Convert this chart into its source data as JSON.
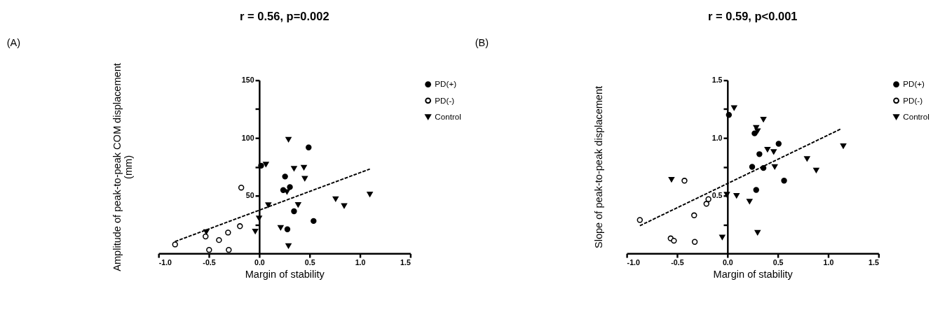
{
  "chart_data": [
    {
      "type": "scatter",
      "title": "r = 0.56, p=0.002",
      "annotations": [
        "(A)"
      ],
      "xlabel": "Margin of stability",
      "ylabel": "Amplitude of peak-to-peak COM displacement\n(mm)",
      "xlim": [
        -1.0,
        1.5
      ],
      "xticks": [
        {
          "value": -1.0,
          "label": "-1.0"
        },
        {
          "value": -0.5,
          "label": "-0.5"
        },
        {
          "value": 0,
          "label": "0.0"
        },
        {
          "value": 0.5,
          "label": "0.5"
        },
        {
          "value": 1.0,
          "label": "1.0"
        },
        {
          "value": 1.5,
          "label": "1.5"
        }
      ],
      "ylim": [
        0,
        150
      ],
      "yticks": [
        {
          "value": 25,
          "label": null
        },
        50,
        {
          "value": 75,
          "label": null
        },
        100,
        {
          "value": 125,
          "label": null
        },
        150
      ],
      "grid": false,
      "legend": "right",
      "series": [
        {
          "name": "PD(+)",
          "color": "#000000",
          "marker": "circle",
          "x": [
            0.018,
            0.256,
            0.238,
            0.304,
            0.49,
            0.345,
            0.539,
            0.279
          ],
          "values": [
            76,
            66.6,
            54.8,
            57.5,
            91.8,
            36.5,
            28.1,
            20.9
          ]
        },
        {
          "name": "PD(-)",
          "color": "#ffffff",
          "marker": "circle",
          "x": [
            -0.836,
            -0.533,
            -0.498,
            -0.4,
            -0.31,
            -0.303,
            -0.192,
            -0.179
          ],
          "values": [
            7.8,
            14.7,
            3.1,
            11.6,
            18.1,
            3.1,
            23.6,
            57.0
          ]
        },
        {
          "name": "Control",
          "color": "#000000",
          "marker": "triangle",
          "x": [
            -0.526,
            0.29,
            0.066,
            0.345,
            0.443,
            0.452,
            0.275,
            0.09,
            0.386,
            -0.002,
            -0.04,
            0.212,
            0.29,
            0.758,
            0.843,
            1.098
          ],
          "values": [
            18.7,
            98.7,
            77.1,
            73.5,
            74.4,
            64.8,
            53.4,
            41.9,
            42.1,
            30.5,
            19.1,
            22.3,
            6.5,
            47.2,
            41.2,
            51.2
          ]
        },
        {
          "type": "line",
          "line_style": "dashed",
          "color": "#000000",
          "x": [
            -0.836,
            1.098
          ],
          "values": [
            10.3,
            73.1
          ]
        }
      ]
    },
    {
      "type": "scatter",
      "title": "r = 0.59, p<0.001",
      "annotations": [
        "(B)"
      ],
      "xlabel": "Margin of stability",
      "ylabel": "Slope of peak-to-peak displacement",
      "xlim": [
        -1.0,
        1.5
      ],
      "xticks": [
        {
          "value": -1.0,
          "label": "-1.0"
        },
        {
          "value": -0.5,
          "label": "-0.5"
        },
        {
          "value": 0,
          "label": "0.0"
        },
        {
          "value": 0.5,
          "label": "0.5"
        },
        {
          "value": 1.0,
          "label": "1.0"
        },
        {
          "value": 1.5,
          "label": "1.5"
        }
      ],
      "ylim": [
        0,
        1.5
      ],
      "yticks": [
        {
          "value": 0.25,
          "label": null
        },
        {
          "value": 0.5,
          "label": "0.5"
        },
        {
          "value": 0.75,
          "label": null
        },
        {
          "value": 1.0,
          "label": "1.0"
        },
        {
          "value": 1.25,
          "label": null
        },
        1.5
      ],
      "grid": false,
      "legend": "right",
      "series": [
        {
          "name": "PD(+)",
          "color": "#000000",
          "marker": "circle",
          "x": [
            0.014,
            0.269,
            0.317,
            0.508,
            0.245,
            0.357,
            0.562,
            0.285
          ],
          "values": [
            1.2,
            1.04,
            0.86,
            0.95,
            0.75,
            0.74,
            0.63,
            0.55
          ]
        },
        {
          "name": "PD(-)",
          "color": "#ffffff",
          "marker": "circle",
          "x": [
            -0.87,
            -0.427,
            -0.331,
            -0.564,
            -0.532,
            -0.325,
            -0.209,
            -0.189
          ],
          "values": [
            0.29,
            0.63,
            0.33,
            0.13,
            0.11,
            0.1,
            0.43,
            0.47
          ]
        },
        {
          "name": "Control",
          "color": "#000000",
          "marker": "triangle",
          "x": [
            -0.556,
            0.066,
            0.285,
            0.299,
            0.357,
            0.397,
            0.459,
            0.469,
            0.79,
            0.881,
            1.15,
            -0.006,
            0.09,
            0.219,
            -0.052,
            0.299
          ],
          "values": [
            0.64,
            1.26,
            1.09,
            1.06,
            1.16,
            0.9,
            0.88,
            0.75,
            0.82,
            0.72,
            0.93,
            0.51,
            0.5,
            0.45,
            0.14,
            0.18
          ]
        },
        {
          "type": "line",
          "line_style": "dashed",
          "color": "#000000",
          "x": [
            -0.87,
            1.13
          ],
          "values": [
            0.24,
            1.08
          ]
        }
      ]
    }
  ]
}
